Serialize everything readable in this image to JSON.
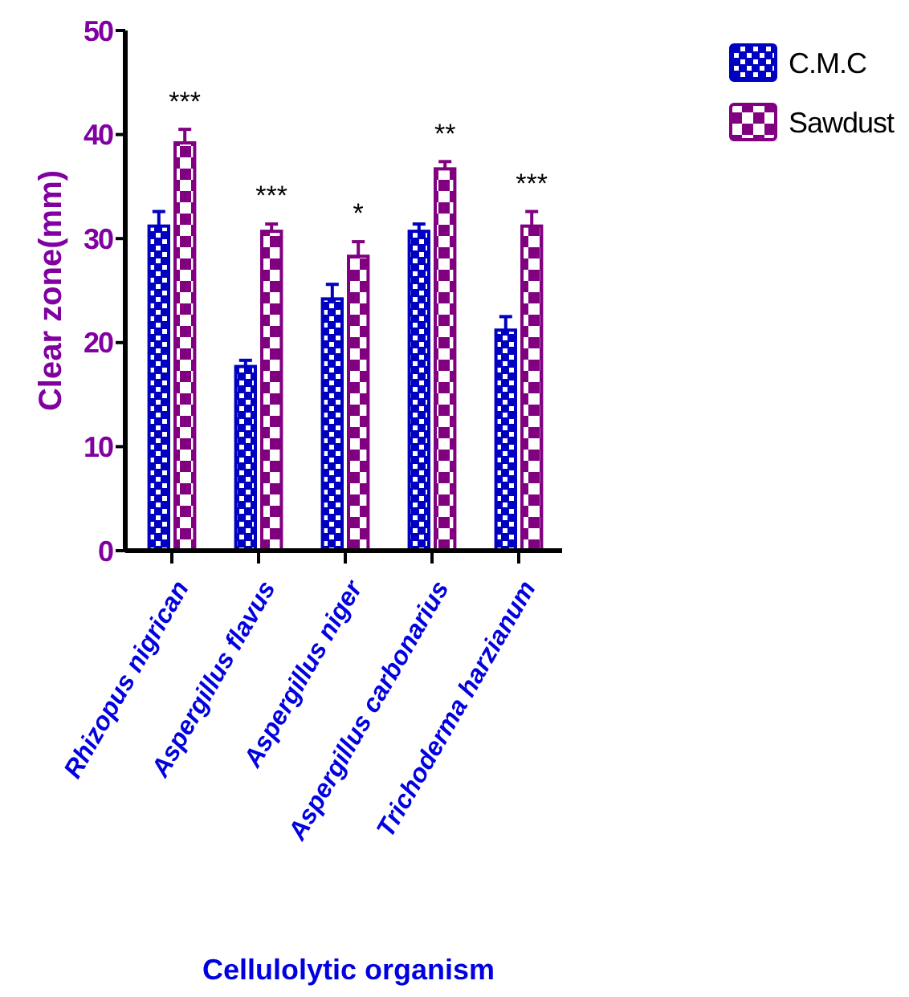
{
  "chart_data": {
    "type": "bar",
    "xlabel": "Cellulolytic organism",
    "ylabel": "Clear  zone(mm)",
    "categories": [
      "Rhizopus nigrican",
      "Aspergillus flavus",
      "Aspergillus niger",
      "Aspergillus carbonarius",
      "Trichoderma harzianum"
    ],
    "series": [
      {
        "name": "C.M.C",
        "color": "#0000c0",
        "values": [
          31.2,
          17.7,
          24.2,
          30.7,
          21.2
        ],
        "errors": [
          1.4,
          0.6,
          1.4,
          0.7,
          1.3
        ]
      },
      {
        "name": "Sawdust",
        "color": "#800080",
        "values": [
          39.2,
          30.7,
          28.3,
          36.7,
          31.2
        ],
        "errors": [
          1.3,
          0.7,
          1.4,
          0.7,
          1.4
        ]
      }
    ],
    "ylim": [
      0,
      50
    ],
    "yticks": [
      0,
      10,
      20,
      30,
      40,
      50
    ],
    "legend": "top right",
    "annotations": [
      "***",
      "***",
      "*",
      "**",
      "***"
    ]
  }
}
